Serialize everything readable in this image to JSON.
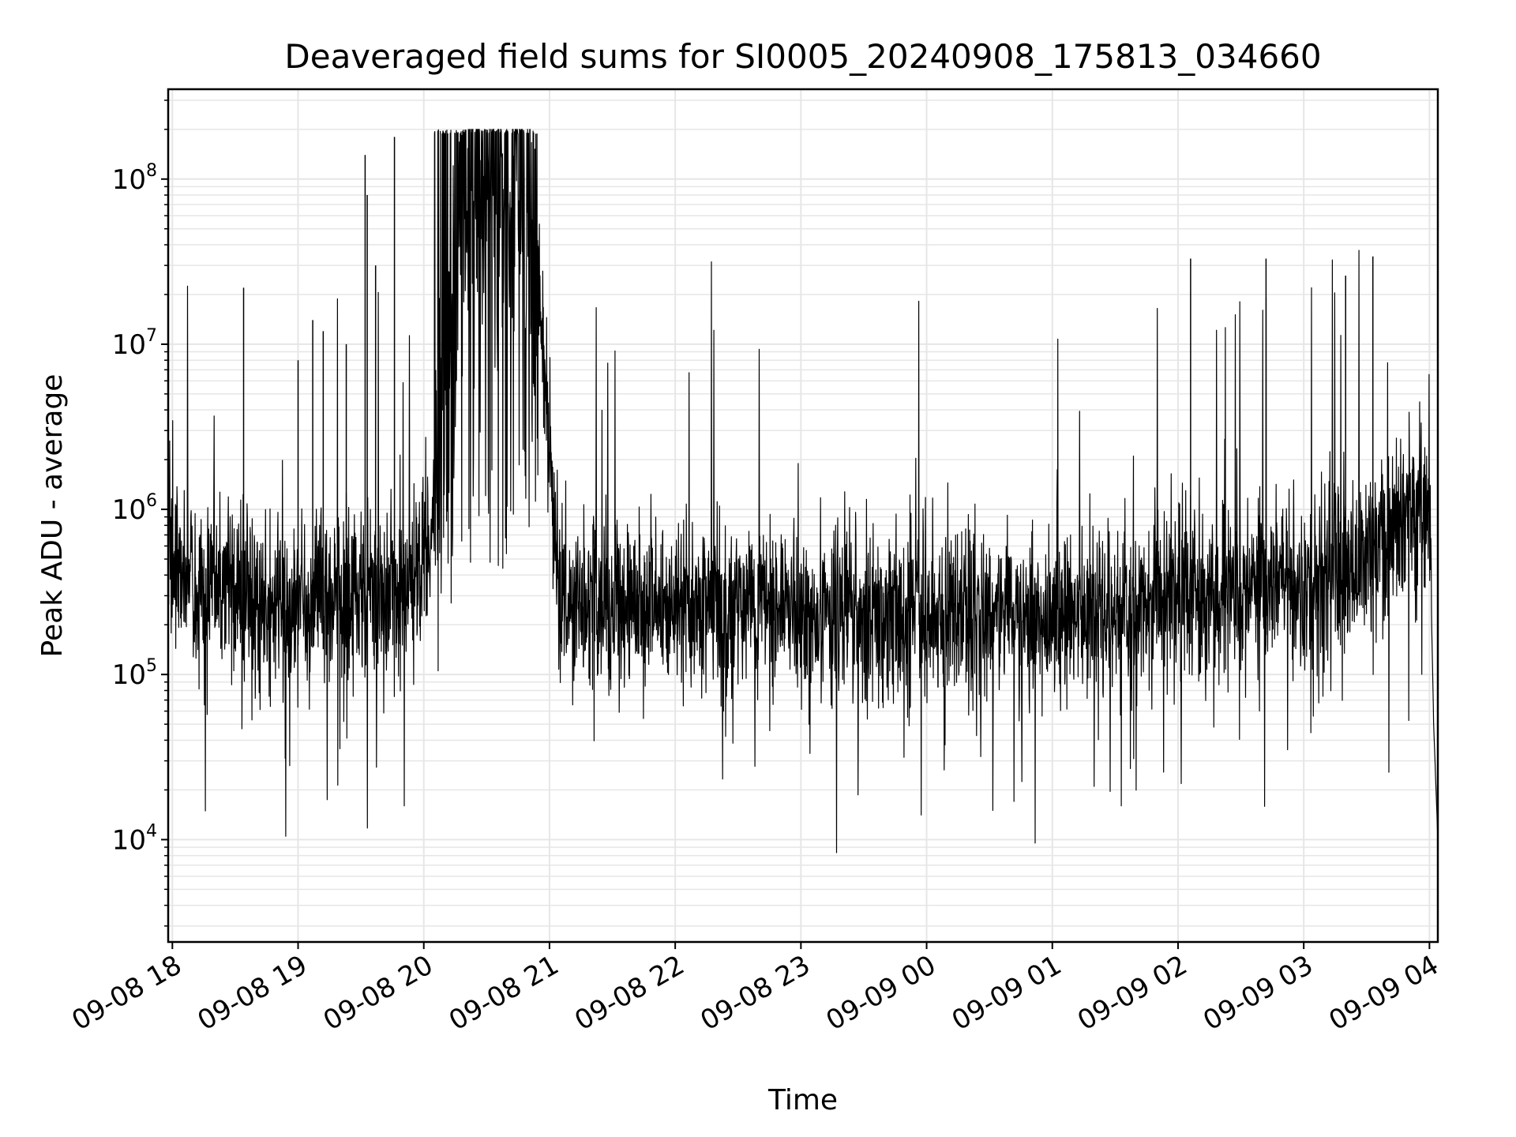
{
  "chart_data": {
    "type": "line",
    "title": "Deaveraged field sums for SI0005_20240908_175813_034660",
    "xlabel": "Time",
    "ylabel": "Peak ADU - average",
    "x_tick_labels": [
      "09-08 18",
      "09-08 19",
      "09-08 20",
      "09-08 21",
      "09-08 22",
      "09-08 23",
      "09-09 00",
      "09-09 01",
      "09-09 02",
      "09-09 03",
      "09-09 04"
    ],
    "x_range": [
      "2024-09-08 17:58",
      "2024-09-09 04:04"
    ],
    "y_scale": "log",
    "y_tick_labels": [
      {
        "base": "10",
        "exp": "4",
        "value": 10000
      },
      {
        "base": "10",
        "exp": "5",
        "value": 100000
      },
      {
        "base": "10",
        "exp": "6",
        "value": 1000000
      },
      {
        "base": "10",
        "exp": "7",
        "value": 10000000
      },
      {
        "base": "10",
        "exp": "8",
        "value": 100000000
      }
    ],
    "ylim": [
      2400,
      350000000
    ],
    "grid": true,
    "line_color": "#000000",
    "grid_color": "#e6e6e6",
    "series": [
      {
        "x": [
          "2024-09-08 17:58",
          "2024-09-08 18:00",
          "2024-09-08 18:06",
          "2024-09-08 18:15",
          "2024-09-08 18:30",
          "2024-09-08 18:45",
          "2024-09-08 19:00",
          "2024-09-08 19:15",
          "2024-09-08 19:30",
          "2024-09-08 19:45",
          "2024-09-08 19:58",
          "2024-09-08 20:05",
          "2024-09-08 20:15",
          "2024-09-08 20:20",
          "2024-09-08 20:30",
          "2024-09-08 20:45",
          "2024-09-08 20:55",
          "2024-09-08 21:02",
          "2024-09-08 21:05",
          "2024-09-08 21:10",
          "2024-09-08 21:30",
          "2024-09-08 22:00",
          "2024-09-08 22:30",
          "2024-09-08 23:00",
          "2024-09-08 23:30",
          "2024-09-09 00:00",
          "2024-09-09 00:30",
          "2024-09-09 01:00",
          "2024-09-09 01:30",
          "2024-09-09 02:00",
          "2024-09-09 02:30",
          "2024-09-09 03:00",
          "2024-09-09 03:20",
          "2024-09-09 03:40",
          "2024-09-09 03:55",
          "2024-09-09 04:00",
          "2024-09-09 04:02",
          "2024-09-09 04:04"
        ],
        "y": [
          700000,
          600000,
          400000,
          320000,
          300000,
          290000,
          300000,
          280000,
          320000,
          300000,
          400000,
          1000000,
          10000000,
          60000000,
          80000000,
          80000000,
          20000000,
          1000000,
          300000,
          280000,
          270000,
          260000,
          260000,
          230000,
          230000,
          230000,
          230000,
          230000,
          220000,
          300000,
          330000,
          370000,
          450000,
          700000,
          1200000,
          1000000,
          50000,
          10000
        ]
      }
    ],
    "annotations": [
      {
        "time": "2024-09-08 18:34",
        "peak": 22000000
      },
      {
        "time": "2024-09-08 19:00",
        "peak": 8000000
      },
      {
        "time": "2024-09-08 19:07",
        "peak": 14000000
      },
      {
        "time": "2024-09-08 19:12",
        "peak": 12000000
      },
      {
        "time": "2024-09-08 19:23",
        "peak": 10000000
      },
      {
        "time": "2024-09-08 19:32",
        "peak": 140000000
      },
      {
        "time": "2024-09-08 19:33",
        "peak": 80000000
      },
      {
        "time": "2024-09-08 19:37",
        "peak": 30000000
      },
      {
        "time": "2024-09-08 19:46",
        "peak": 180000000
      },
      {
        "time": "2024-09-09 02:06",
        "peak": 33000000
      },
      {
        "time": "2024-09-09 02:42",
        "peak": 33000000
      },
      {
        "time": "2024-09-09 03:20",
        "peak": 26000000
      },
      {
        "time": "2024-09-09 03:33",
        "peak": 34000000
      }
    ]
  }
}
